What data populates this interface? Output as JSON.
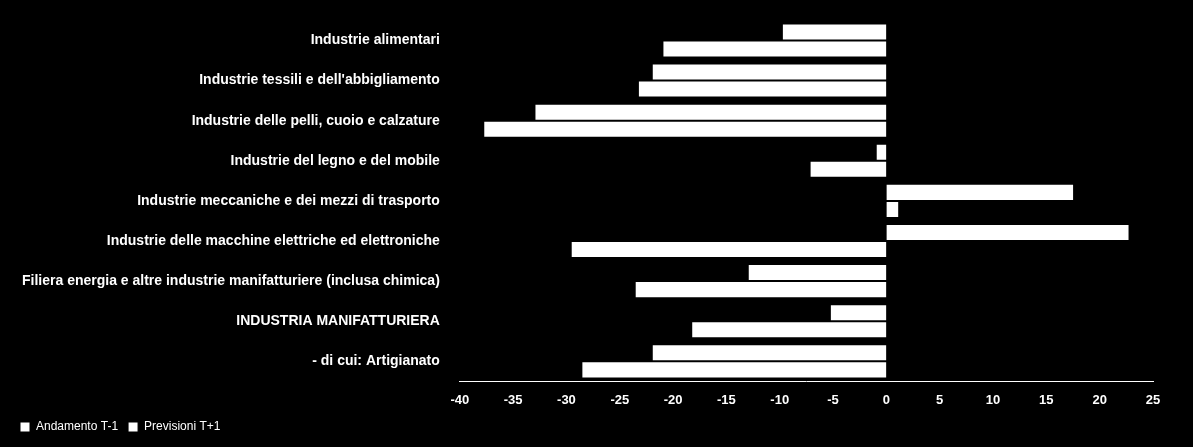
{
  "chart_data": {
    "type": "bar",
    "orientation": "horizontal",
    "categories": [
      "Industrie alimentari",
      "Industrie tessili e dell'abbigliamento",
      "Industrie delle pelli, cuoio e calzature",
      "Industrie del legno e del mobile",
      "Industrie meccaniche e dei mezzi di trasporto",
      "Industrie delle macchine elettriche ed elettroniche",
      "Filiera energia e altre industrie manifatturiere (inclusa chimica)",
      "INDUSTRIA MANIFATTURIERA",
      "- di cui: Artigianato"
    ],
    "series": [
      {
        "name": "Andamento T-1",
        "color": "#ffffff",
        "values": [
          -9.8,
          -22,
          -33,
          -1,
          17.6,
          22.8,
          -13,
          -5.3,
          -22
        ]
      },
      {
        "name": "Previsioni T+1",
        "color": "#ffffff",
        "values": [
          -21,
          -23.3,
          -37.8,
          -7.2,
          1.2,
          -29.6,
          -23.6,
          -18.3,
          -28.6
        ]
      }
    ],
    "xlim": [
      -40,
      25
    ],
    "xticks": [
      -40,
      -35,
      -30,
      -25,
      -20,
      -15,
      -10,
      -5,
      0,
      5,
      10,
      15,
      20,
      25
    ],
    "grid": false,
    "legend": "bottom-left"
  }
}
